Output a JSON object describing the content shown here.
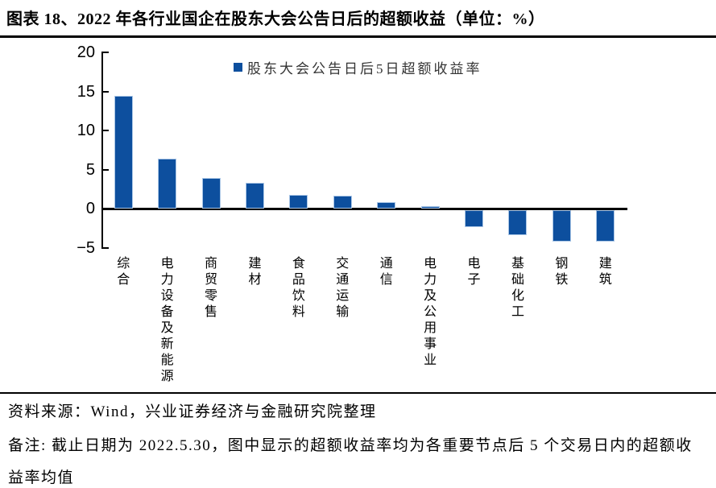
{
  "title": "图表 18、2022 年各行业国企在股东大会公告日后的超额收益（单位：%）",
  "legend": {
    "label": "股东大会公告日后5日超额收益率"
  },
  "footer": {
    "source": "资料来源：Wind，兴业证券经济与金融研究院整理",
    "note": "备注: 截止日期为 2022.5.30，图中显示的超额收益率均为各重要节点后 5 个交易日内的超额收益率均值"
  },
  "colors": {
    "bar": "#0d4f9e",
    "bar_border": "#aac6e6",
    "axis": "#000000",
    "legend_text": "#333333"
  },
  "chart_data": {
    "type": "bar",
    "title": "2022 年各行业国企在股东大会公告日后的超额收益（单位：%）",
    "legend_entries": [
      "股东大会公告日后5日超额收益率"
    ],
    "legend_position": "top-center",
    "categories": [
      "综合",
      "电力设备及新能源",
      "商贸零售",
      "建材",
      "食品饮料",
      "交通运输",
      "通信",
      "电力及公用事业",
      "电子",
      "基础化工",
      "钢铁",
      "建筑"
    ],
    "values": [
      14.4,
      6.4,
      3.9,
      3.3,
      1.8,
      1.7,
      0.9,
      0.3,
      -2.2,
      -3.2,
      -4.0,
      -4.0
    ],
    "unit": "%",
    "ylim": [
      -5,
      20
    ],
    "yticks": [
      20,
      15,
      10,
      5,
      0,
      -5
    ],
    "grid": false
  }
}
